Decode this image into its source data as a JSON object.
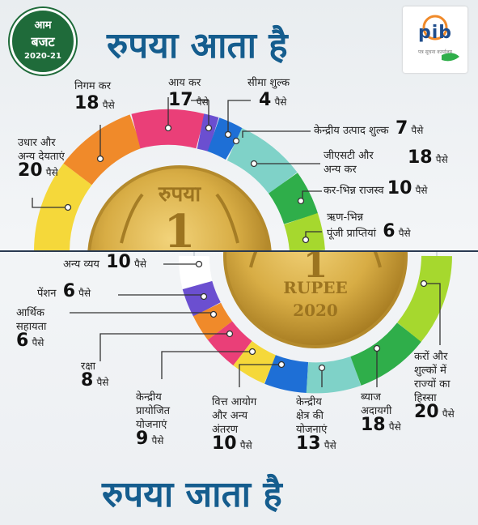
{
  "badge": {
    "line1": "आम",
    "line2": "बजट",
    "line3": "2020-21"
  },
  "heading_top": "रुपया आता है",
  "heading_bottom": "रुपया जाता है",
  "logo": {
    "text": "pib",
    "subtext": "पत्र सूचना कार्यालय"
  },
  "coin": {
    "word_top": "रुपया",
    "numeral": "1",
    "word_bottom": "RUPEE",
    "year": "2020"
  },
  "paise": "पैसे",
  "income": [
    {
      "label": "उधार और",
      "label2": "अन्य देयताएं",
      "value": "20",
      "color": "#f5d83a"
    },
    {
      "label": "निगम कर",
      "label2": "",
      "value": "18",
      "color": "#f08a2a"
    },
    {
      "label": "आय कर",
      "label2": "",
      "value": "17",
      "color": "#ea3f78"
    },
    {
      "label": "सीमा शुल्क",
      "label2": "",
      "value": "4",
      "color": "#6b4fd0"
    },
    {
      "label": "केन्द्रीय उत्पाद शुल्क",
      "label2": "",
      "value": "7",
      "color": "#1e6fd6"
    },
    {
      "label": "जीएसटी और",
      "label2": "अन्य कर",
      "value": "18",
      "color": "#7fd2c8"
    },
    {
      "label": "कर-भिन्न राजस्व",
      "label2": "",
      "value": "10",
      "color": "#2fae4a"
    },
    {
      "label": "ऋण-भिन्न",
      "label2": "पूंजी प्राप्तियां",
      "value": "6",
      "color": "#a6d82e"
    }
  ],
  "expenditure": [
    {
      "label": "अन्य व्यय",
      "label2": "",
      "value": "10",
      "color": "#ffffff"
    },
    {
      "label": "पेंशन",
      "label2": "",
      "value": "6",
      "color": "#6b4fd0"
    },
    {
      "label": "आर्थिक",
      "label2": "सहायता",
      "value": "6",
      "color": "#f08a2a"
    },
    {
      "label": "रक्षा",
      "label2": "",
      "value": "8",
      "color": "#ea3f78"
    },
    {
      "label": "केन्द्रीय",
      "label2": "प्रायोजित",
      "label3": "योजनाएं",
      "value": "9",
      "color": "#f5d83a"
    },
    {
      "label": "वित्त आयोग",
      "label2": "और अन्य",
      "label3": "अंतरण",
      "value": "10",
      "color": "#1e6fd6"
    },
    {
      "label": "केन्द्रीय",
      "label2": "क्षेत्र की",
      "label3": "योजनाएं",
      "value": "13",
      "color": "#7fd2c8"
    },
    {
      "label": "ब्याज",
      "label2": "अदायगी",
      "value": "18",
      "color": "#2fae4a"
    },
    {
      "label": "करों और",
      "label2": "शुल्कों में",
      "label3": "राज्यों का",
      "label4": "हिस्सा",
      "value": "20",
      "color": "#a6d82e"
    }
  ]
}
